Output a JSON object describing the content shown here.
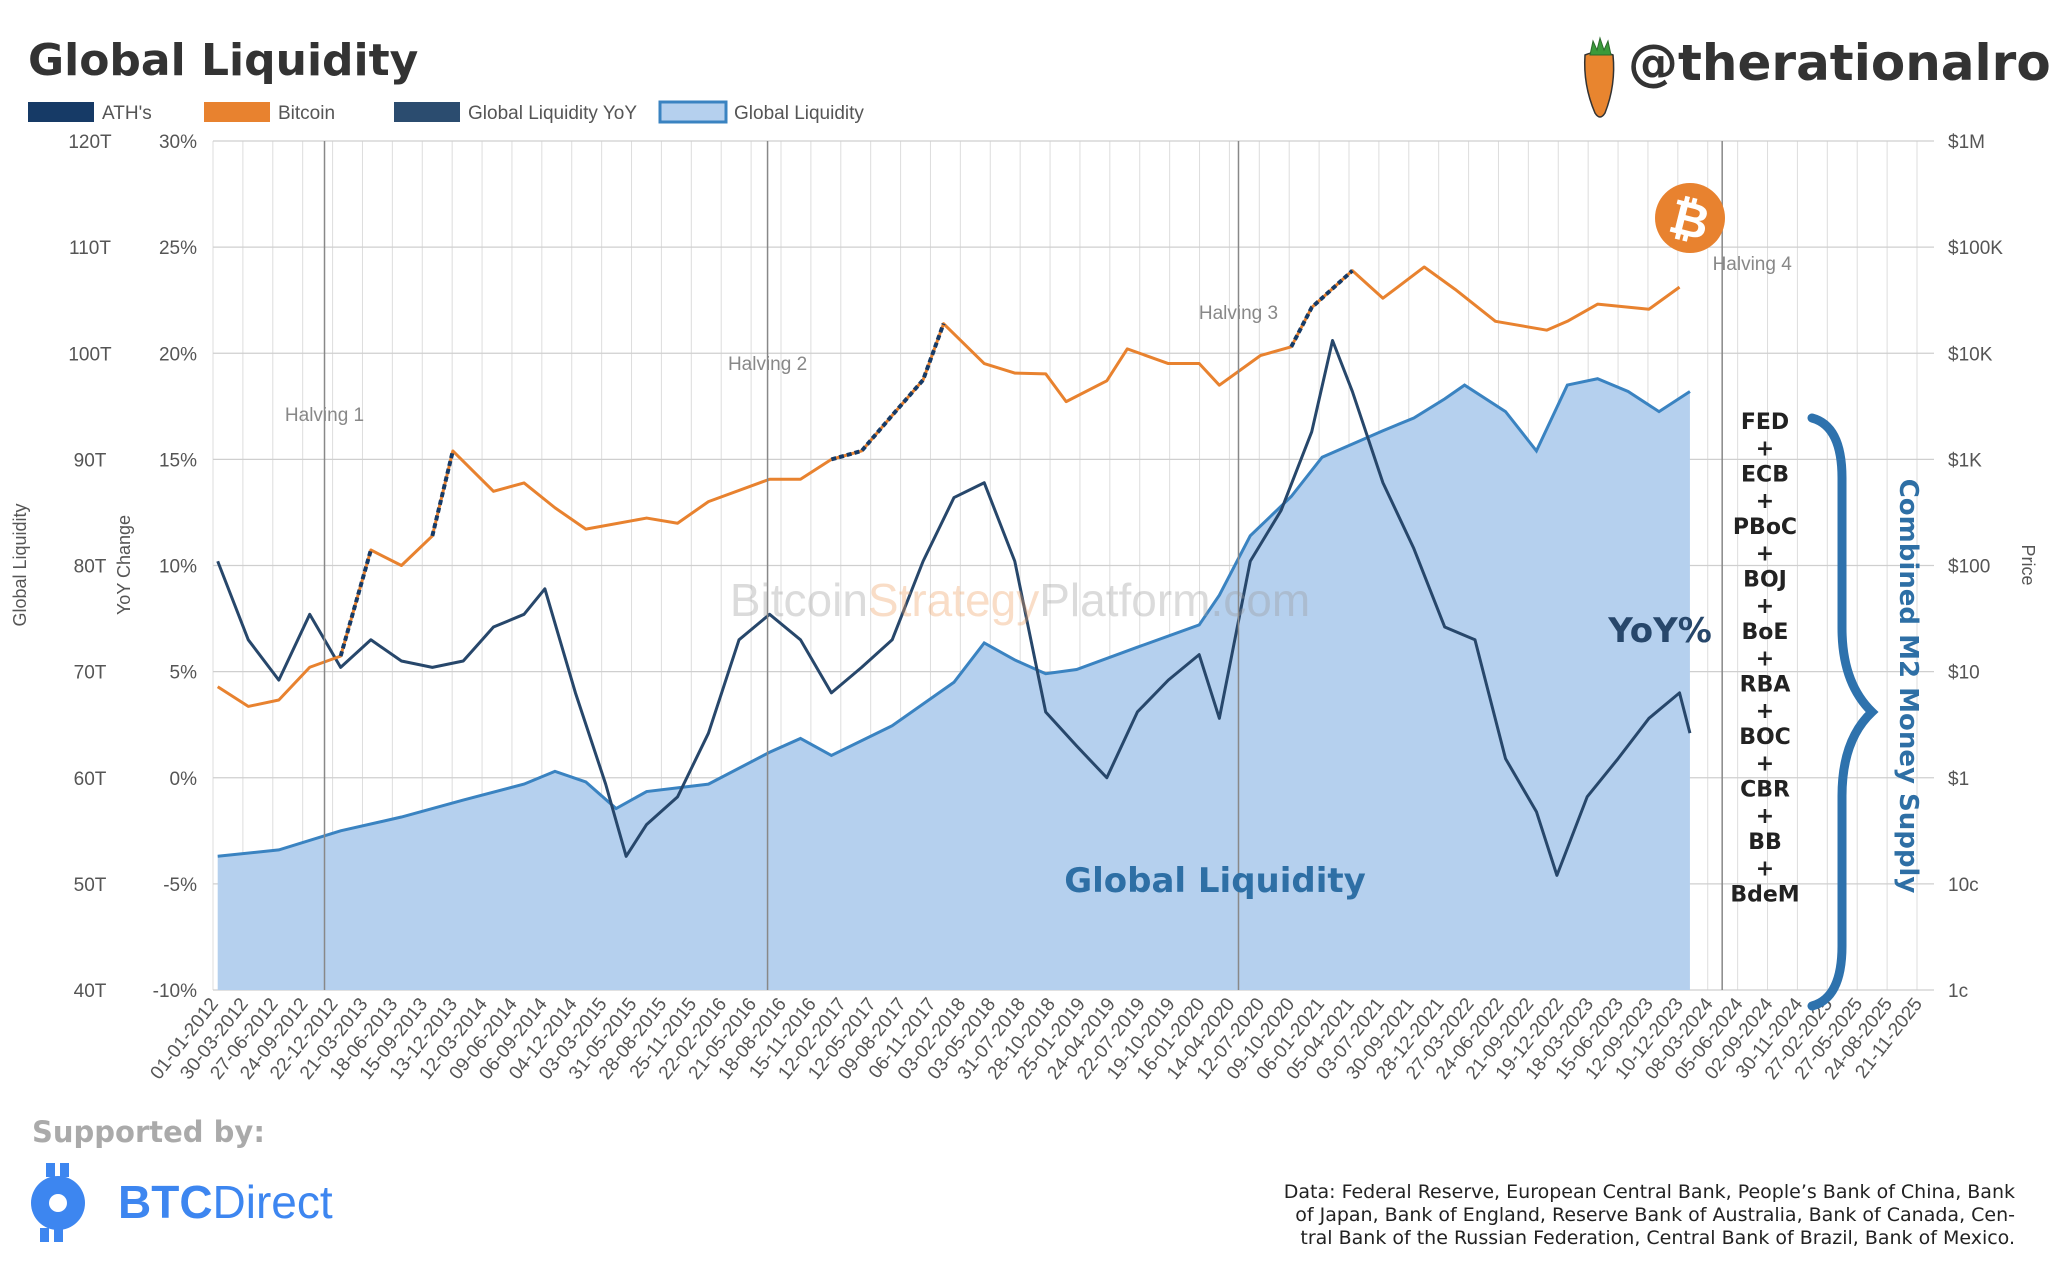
{
  "header": {
    "title": "Global Liquidity",
    "handle": "@therationalroot"
  },
  "legend": [
    {
      "label": "ATH's",
      "color": "#163a66"
    },
    {
      "label": "Bitcoin",
      "color": "#e8822f"
    },
    {
      "label": "Global Liquidity YoY",
      "color": "#2b4c6f"
    },
    {
      "label": "Global Liquidity",
      "color": "#b5d0ee",
      "border": "#3a83c1"
    }
  ],
  "chart_data": {
    "type": "line",
    "grid": true,
    "legend_position": "top-left",
    "x_tick_labels": [
      "01-01-2012",
      "30-03-2012",
      "27-06-2012",
      "24-09-2012",
      "22-12-2012",
      "21-03-2013",
      "18-06-2013",
      "15-09-2013",
      "13-12-2013",
      "12-03-2014",
      "09-06-2014",
      "06-09-2014",
      "04-12-2014",
      "03-03-2015",
      "31-05-2015",
      "28-08-2015",
      "25-11-2015",
      "22-02-2016",
      "21-05-2016",
      "18-08-2016",
      "15-11-2016",
      "12-02-2017",
      "12-05-2017",
      "09-08-2017",
      "06-11-2017",
      "03-02-2018",
      "03-05-2018",
      "31-07-2018",
      "28-10-2018",
      "25-01-2019",
      "24-04-2019",
      "22-07-2019",
      "19-10-2019",
      "16-01-2020",
      "14-04-2020",
      "12-07-2020",
      "09-10-2020",
      "06-01-2021",
      "05-04-2021",
      "03-07-2021",
      "30-09-2021",
      "28-12-2021",
      "27-03-2022",
      "24-06-2022",
      "21-09-2022",
      "19-12-2022",
      "18-03-2023",
      "15-06-2023",
      "12-09-2023",
      "10-12-2023",
      "08-03-2024",
      "05-06-2024",
      "02-09-2024",
      "30-11-2024",
      "27-02-2025",
      "27-05-2025",
      "24-08-2025",
      "21-11-2025"
    ],
    "axes": {
      "liquidity": {
        "title": "Global Liquidity",
        "range": [
          40,
          120
        ],
        "ticks": [
          "40T",
          "50T",
          "60T",
          "70T",
          "80T",
          "90T",
          "100T",
          "110T",
          "120T"
        ]
      },
      "yoy": {
        "title": "YoY Change",
        "range": [
          -10,
          30
        ],
        "ticks": [
          "-10%",
          "-5%",
          "0%",
          "5%",
          "10%",
          "15%",
          "20%",
          "25%",
          "30%"
        ]
      },
      "price": {
        "title": "Price",
        "scale": "log",
        "range": [
          0.01,
          1000000
        ],
        "ticks": [
          "1c",
          "10c",
          "$1",
          "$10",
          "$100",
          "$1K",
          "$10K",
          "$100K",
          "$1M"
        ]
      }
    },
    "series": [
      {
        "name": "Global Liquidity",
        "axis": "liquidity",
        "unit": "T",
        "points": [
          [
            "2012-01",
            52.6
          ],
          [
            "2012-07",
            53.2
          ],
          [
            "2013-01",
            55.0
          ],
          [
            "2013-07",
            56.3
          ],
          [
            "2014-01",
            57.9
          ],
          [
            "2014-07",
            59.4
          ],
          [
            "2014-10",
            60.6
          ],
          [
            "2015-01",
            59.6
          ],
          [
            "2015-04",
            57.1
          ],
          [
            "2015-07",
            58.7
          ],
          [
            "2016-01",
            59.4
          ],
          [
            "2016-07",
            62.4
          ],
          [
            "2016-10",
            63.7
          ],
          [
            "2017-01",
            62.1
          ],
          [
            "2017-07",
            64.9
          ],
          [
            "2018-01",
            69.0
          ],
          [
            "2018-04",
            72.7
          ],
          [
            "2018-07",
            71.1
          ],
          [
            "2018-10",
            69.8
          ],
          [
            "2019-01",
            70.2
          ],
          [
            "2019-07",
            72.3
          ],
          [
            "2020-01",
            74.4
          ],
          [
            "2020-03",
            77.2
          ],
          [
            "2020-06",
            82.8
          ],
          [
            "2020-10",
            86.5
          ],
          [
            "2021-01",
            90.2
          ],
          [
            "2021-07",
            92.7
          ],
          [
            "2021-10",
            93.9
          ],
          [
            "2022-01",
            95.7
          ],
          [
            "2022-03",
            97.0
          ],
          [
            "2022-07",
            94.5
          ],
          [
            "2022-10",
            90.8
          ],
          [
            "2023-01",
            97.0
          ],
          [
            "2023-04",
            97.6
          ],
          [
            "2023-07",
            96.4
          ],
          [
            "2023-10",
            94.5
          ],
          [
            "2024-01",
            96.4
          ]
        ]
      },
      {
        "name": "Global Liquidity YoY",
        "axis": "yoy",
        "unit": "%",
        "points": [
          [
            "2012-01",
            10.2
          ],
          [
            "2012-04",
            6.5
          ],
          [
            "2012-07",
            4.6
          ],
          [
            "2012-10",
            7.7
          ],
          [
            "2013-01",
            5.2
          ],
          [
            "2013-04",
            6.5
          ],
          [
            "2013-07",
            5.5
          ],
          [
            "2013-10",
            5.2
          ],
          [
            "2014-01",
            5.5
          ],
          [
            "2014-04",
            7.1
          ],
          [
            "2014-07",
            7.7
          ],
          [
            "2014-09",
            8.9
          ],
          [
            "2014-12",
            4.0
          ],
          [
            "2015-03",
            -0.3
          ],
          [
            "2015-05",
            -3.7
          ],
          [
            "2015-07",
            -2.2
          ],
          [
            "2015-10",
            -0.9
          ],
          [
            "2016-01",
            2.1
          ],
          [
            "2016-04",
            6.5
          ],
          [
            "2016-07",
            7.7
          ],
          [
            "2016-10",
            6.5
          ],
          [
            "2017-01",
            4.0
          ],
          [
            "2017-04",
            5.2
          ],
          [
            "2017-07",
            6.5
          ],
          [
            "2017-10",
            10.2
          ],
          [
            "2018-01",
            13.2
          ],
          [
            "2018-04",
            13.9
          ],
          [
            "2018-07",
            10.2
          ],
          [
            "2018-10",
            3.1
          ],
          [
            "2019-01",
            1.5
          ],
          [
            "2019-04",
            0.0
          ],
          [
            "2019-07",
            3.1
          ],
          [
            "2019-10",
            4.6
          ],
          [
            "2020-01",
            5.8
          ],
          [
            "2020-03",
            2.8
          ],
          [
            "2020-06",
            10.2
          ],
          [
            "2020-09",
            12.6
          ],
          [
            "2020-12",
            16.3
          ],
          [
            "2021-02",
            20.6
          ],
          [
            "2021-04",
            18.2
          ],
          [
            "2021-07",
            13.9
          ],
          [
            "2021-10",
            10.8
          ],
          [
            "2022-01",
            7.1
          ],
          [
            "2022-04",
            6.5
          ],
          [
            "2022-07",
            0.9
          ],
          [
            "2022-10",
            -1.6
          ],
          [
            "2022-12",
            -4.6
          ],
          [
            "2023-03",
            -0.9
          ],
          [
            "2023-06",
            0.9
          ],
          [
            "2023-09",
            2.8
          ],
          [
            "2023-12",
            4.0
          ],
          [
            "2024-01",
            2.1
          ]
        ]
      },
      {
        "name": "Bitcoin",
        "axis": "price",
        "unit": "USD",
        "points": [
          [
            "2012-01",
            7.2
          ],
          [
            "2012-04",
            4.7
          ],
          [
            "2012-07",
            5.4
          ],
          [
            "2012-10",
            11
          ],
          [
            "2013-01",
            14
          ],
          [
            "2013-04",
            140
          ],
          [
            "2013-07",
            100
          ],
          [
            "2013-10",
            190
          ],
          [
            "2013-12",
            1200
          ],
          [
            "2014-04",
            500
          ],
          [
            "2014-07",
            600
          ],
          [
            "2014-10",
            350
          ],
          [
            "2015-01",
            220
          ],
          [
            "2015-07",
            280
          ],
          [
            "2015-10",
            250
          ],
          [
            "2016-01",
            400
          ],
          [
            "2016-07",
            650
          ],
          [
            "2016-10",
            650
          ],
          [
            "2017-01",
            1000
          ],
          [
            "2017-04",
            1200
          ],
          [
            "2017-07",
            2600
          ],
          [
            "2017-10",
            5600
          ],
          [
            "2017-12",
            19000
          ],
          [
            "2018-04",
            8000
          ],
          [
            "2018-07",
            6500
          ],
          [
            "2018-10",
            6400
          ],
          [
            "2018-12",
            3500
          ],
          [
            "2019-04",
            5500
          ],
          [
            "2019-06",
            11000
          ],
          [
            "2019-10",
            8000
          ],
          [
            "2020-01",
            8000
          ],
          [
            "2020-03",
            5000
          ],
          [
            "2020-07",
            9500
          ],
          [
            "2020-10",
            11500
          ],
          [
            "2020-12",
            27000
          ],
          [
            "2021-04",
            60000
          ],
          [
            "2021-07",
            33000
          ],
          [
            "2021-11",
            65000
          ],
          [
            "2022-02",
            40000
          ],
          [
            "2022-06",
            20000
          ],
          [
            "2022-11",
            16500
          ],
          [
            "2023-01",
            20000
          ],
          [
            "2023-04",
            29000
          ],
          [
            "2023-09",
            26000
          ],
          [
            "2023-12",
            42000
          ]
        ]
      }
    ],
    "ath_periods": [
      [
        "2013-01",
        "2013-04"
      ],
      [
        "2013-10",
        "2013-12"
      ],
      [
        "2017-01",
        "2017-12"
      ],
      [
        "2020-10",
        "2021-04"
      ],
      [
        "2021-10",
        "2021-11"
      ]
    ],
    "halvings": [
      {
        "label": "Halving 1",
        "date": "2012-11-28"
      },
      {
        "label": "Halving 2",
        "date": "2016-07-09"
      },
      {
        "label": "Halving 3",
        "date": "2020-05-11"
      },
      {
        "label": "Halving 4",
        "date": "2024-04-20"
      }
    ],
    "annotations": {
      "yoy_label": "YoY%",
      "liquidity_label": "Global Liquidity",
      "banks": [
        "FED",
        "+",
        "ECB",
        "+",
        "PBoC",
        "+",
        "BOJ",
        "+",
        "BoE",
        "+",
        "RBA",
        "+",
        "BOC",
        "+",
        "CBR",
        "+",
        "BB",
        "+",
        "BdeM"
      ],
      "combined_label": "Combined M2 Money Supply",
      "watermark": [
        "Bitcoin",
        "Strategy",
        "Platform.com"
      ]
    }
  },
  "footer": {
    "supported_by": "Supported by:",
    "sponsor_bold": "BTC",
    "sponsor_light": "Direct",
    "data_source": [
      "Data: Federal Reserve, European Central Bank, People’s Bank of China, Bank",
      "of Japan, Bank of England, Reserve Bank of Australia, Bank of Canada, Cen-",
      "tral Bank of the Russian Federation, Central Bank of Brazil, Bank of Mexico."
    ]
  }
}
